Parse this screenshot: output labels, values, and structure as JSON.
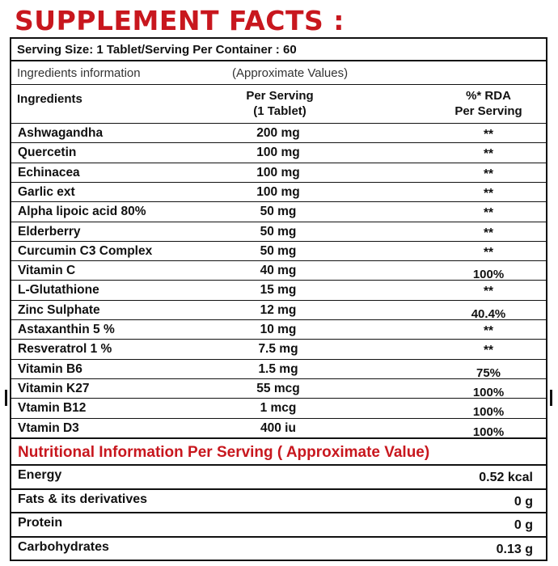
{
  "title": "SUPPLEMENT FACTS :",
  "serving_info": "Serving Size: 1 Tablet/Serving Per Container : 60",
  "ingredients_information": "Ingredients information",
  "approximate_values": "(Approximate Values)",
  "headers": {
    "ingredients": "Ingredients",
    "per_serving_line1": "Per Serving",
    "per_serving_line2": "(1 Tablet)",
    "rda_line1": "%* RDA",
    "rda_line2": "Per Serving"
  },
  "ingredients": [
    {
      "name": "Ashwagandha",
      "amount": "200 mg",
      "rda": "**"
    },
    {
      "name": "Quercetin",
      "amount": "100 mg",
      "rda": "**"
    },
    {
      "name": "Echinacea",
      "amount": "100 mg",
      "rda": "**"
    },
    {
      "name": "Garlic ext",
      "amount": "100 mg",
      "rda": "**"
    },
    {
      "name": "Alpha lipoic acid 80%",
      "amount": "50 mg",
      "rda": "**"
    },
    {
      "name": "Elderberry",
      "amount": "50 mg",
      "rda": "**"
    },
    {
      "name": "Curcumin C3 Complex",
      "amount": "50 mg",
      "rda": "**"
    },
    {
      "name": "Vitamin C",
      "amount": "40 mg",
      "rda": "100%"
    },
    {
      "name": "L-Glutathione",
      "amount": "15 mg",
      "rda": "**"
    },
    {
      "name": "Zinc Sulphate",
      "amount": "12 mg",
      "rda": "40.4%"
    },
    {
      "name": "Astaxanthin 5 %",
      "amount": "10 mg",
      "rda": "**"
    },
    {
      "name": "Resveratrol 1 %",
      "amount": "7.5 mg",
      "rda": "**"
    },
    {
      "name": "Vitamin B6",
      "amount": "1.5 mg",
      "rda": "75%"
    },
    {
      "name": "Vitamin K27",
      "amount": "55 mcg",
      "rda": "100%"
    },
    {
      "name": "Vtamin B12",
      "amount": "1 mcg",
      "rda": "100%"
    },
    {
      "name": "Vtamin D3",
      "amount": "400 iu",
      "rda": "100%"
    }
  ],
  "nutrition_title": "Nutritional Information Per Serving ( Approximate Value)",
  "nutrition": [
    {
      "name": "Energy",
      "value": "0.52 kcal"
    },
    {
      "name": "Fats & its derivatives",
      "value": "0 g"
    },
    {
      "name": "Protein",
      "value": "0 g"
    },
    {
      "name": "Carbohydrates",
      "value": "0.13 g"
    }
  ],
  "colors": {
    "accent_red": "#c8171e",
    "text": "#111111",
    "background": "#ffffff"
  }
}
